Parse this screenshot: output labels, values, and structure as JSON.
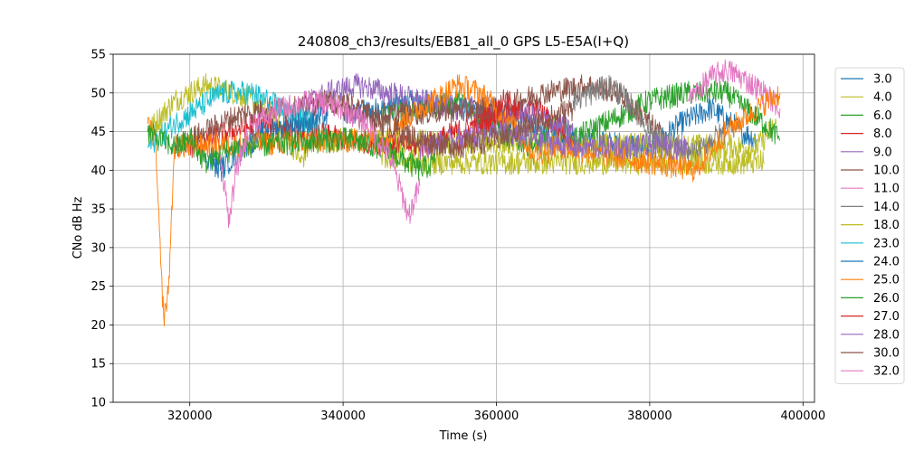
{
  "chart_data": {
    "type": "line",
    "title": "240808_ch3/results/EB81_all_0 GPS L5-E5A(I+Q)",
    "xlabel": "Time (s)",
    "ylabel": "CNo dB Hz",
    "xlim": [
      310000,
      401500
    ],
    "ylim": [
      10,
      55
    ],
    "xticks": [
      320000,
      340000,
      360000,
      380000,
      400000
    ],
    "xtick_labels": [
      "320000",
      "340000",
      "360000",
      "380000",
      "400000"
    ],
    "yticks": [
      10,
      15,
      20,
      25,
      30,
      35,
      40,
      45,
      50,
      55
    ],
    "ytick_labels": [
      "10",
      "15",
      "20",
      "25",
      "30",
      "35",
      "40",
      "45",
      "50",
      "55"
    ],
    "grid": true,
    "legend_position": "right",
    "series": [
      {
        "name": "3.0",
        "color": "#1f77b4",
        "x": [
          340000,
          350000,
          360000,
          370000,
          380000,
          384000,
          388000,
          392000,
          394000
        ],
        "y": [
          47,
          49,
          47,
          44,
          43,
          46,
          48,
          45,
          44
        ]
      },
      {
        "name": "4.0",
        "color": "#bcbd22",
        "x": [
          314500,
          318000,
          322000,
          326000,
          330000,
          333000,
          334500,
          336000,
          394000,
          396500
        ],
        "y": [
          45,
          49,
          51,
          50,
          48,
          44,
          41,
          44,
          43,
          46
        ]
      },
      {
        "name": "6.0",
        "color": "#2ca02c",
        "x": [
          345000,
          350000,
          355000,
          360000,
          365000,
          368000,
          370000,
          374000,
          376000,
          380000,
          385000,
          390000,
          395000,
          397000
        ],
        "y": [
          47,
          48,
          49,
          45,
          43,
          46,
          44,
          46,
          47,
          49,
          50,
          50,
          46,
          44
        ]
      },
      {
        "name": "8.0",
        "color": "#d62728",
        "x": [
          320000,
          325000,
          330000,
          340000,
          350000,
          355000,
          360000,
          365000,
          370000
        ],
        "y": [
          43,
          45,
          46,
          44,
          43,
          45,
          47,
          48,
          44
        ]
      },
      {
        "name": "9.0",
        "color": "#9467bd",
        "x": [
          334000,
          338000,
          342000,
          346000,
          350000,
          355000,
          360000,
          365000,
          370000
        ],
        "y": [
          48,
          50,
          51,
          50,
          49,
          48,
          48,
          47,
          45
        ]
      },
      {
        "name": "10.0",
        "color": "#8c564b",
        "x": [
          318000,
          322000,
          326000,
          330000,
          334000,
          338000,
          342000,
          360000,
          366000,
          372000,
          376000,
          380000,
          382000
        ],
        "y": [
          43,
          45,
          47,
          48,
          48,
          49,
          47,
          48,
          50,
          51,
          50,
          46,
          44
        ]
      },
      {
        "name": "11.0",
        "color": "#e377c2",
        "x": [
          385000,
          388000,
          390000,
          392000,
          395000,
          397000
        ],
        "y": [
          49,
          52,
          53,
          52,
          50,
          48
        ]
      },
      {
        "name": "14.0",
        "color": "#7f7f7f",
        "x": [
          370000,
          375000,
          378000,
          380000,
          383000,
          386000,
          388000,
          390000
        ],
        "y": [
          49,
          51,
          48,
          45,
          43,
          42,
          44,
          45
        ]
      },
      {
        "name": "18.0",
        "color": "#bcbd22",
        "x": [
          345000,
          350000,
          355000,
          360000,
          365000,
          370000,
          380000,
          390000,
          395000
        ],
        "y": [
          42,
          41,
          41,
          41,
          41,
          41,
          41,
          41,
          41
        ]
      },
      {
        "name": "23.0",
        "color": "#17becf",
        "x": [
          314500,
          318000,
          321000,
          324000,
          328000,
          332000,
          336000,
          338000
        ],
        "y": [
          43,
          46,
          48,
          50,
          50,
          48,
          46,
          44
        ]
      },
      {
        "name": "24.0",
        "color": "#1f77b4",
        "x": [
          322000,
          324000,
          327000,
          330000,
          334000,
          338000
        ],
        "y": [
          42,
          40,
          43,
          45,
          46,
          47
        ]
      },
      {
        "name": "25.0",
        "color": "#ff7f0e",
        "x": [
          314500,
          315500,
          316200,
          316600,
          317200,
          318000,
          345000,
          350000,
          355000,
          358000,
          360000,
          362000,
          365000,
          368000,
          386000,
          390000,
          394000,
          397000
        ],
        "y": [
          46,
          44,
          28,
          21,
          24,
          43,
          44,
          48,
          51,
          50,
          48,
          46,
          42,
          43,
          40,
          45,
          48,
          50
        ]
      },
      {
        "name": "26.0",
        "color": "#2ca02c",
        "x": [
          314500,
          316000,
          318000,
          320000,
          322000,
          326000,
          340000,
          345000,
          350000,
          352000
        ],
        "y": [
          45,
          44,
          43,
          44,
          41,
          43,
          44,
          43,
          40,
          41
        ]
      },
      {
        "name": "27.0",
        "color": "#d62728",
        "x": [
          355000,
          357000,
          359000,
          361000,
          363000
        ],
        "y": [
          43,
          45,
          47,
          49,
          48
        ]
      },
      {
        "name": "28.0",
        "color": "#9467bd",
        "x": [
          350000,
          355000,
          360000,
          365000,
          370000,
          375000,
          380000,
          385000
        ],
        "y": [
          43,
          44,
          45,
          44,
          43,
          43,
          43,
          43
        ]
      },
      {
        "name": "30.0",
        "color": "#8c564b",
        "x": [
          338000,
          342000,
          345000,
          350000,
          355000,
          360000,
          365000,
          370000
        ],
        "y": [
          49,
          48,
          46,
          44,
          43,
          44,
          46,
          48
        ]
      },
      {
        "name": "32.0",
        "color": "#e377c2",
        "x": [
          324000,
          325200,
          326000,
          328000,
          332000,
          336000,
          340000,
          343000,
          346000,
          348000,
          348500,
          350000
        ],
        "y": [
          42,
          33,
          40,
          46,
          48,
          49,
          48,
          46,
          42,
          36,
          34,
          38
        ]
      }
    ]
  }
}
